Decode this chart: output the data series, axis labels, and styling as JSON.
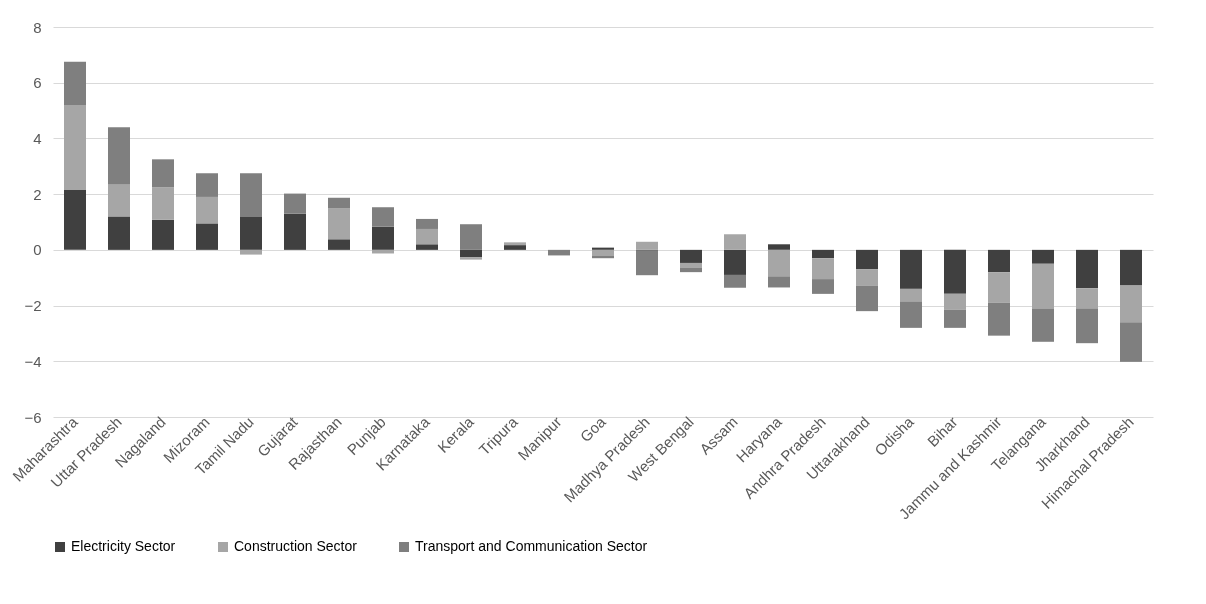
{
  "chart_data": {
    "type": "bar",
    "stacked": true,
    "categories": [
      "Maharashtra",
      "Uttar Pradesh",
      "Nagaland",
      "Mizoram",
      "Tamil Nadu",
      "Gujarat",
      "Rajasthan",
      "Punjab",
      "Karnataka",
      "Kerala",
      "Tripura",
      "Manipur",
      "Goa",
      "Madhya Pradesh",
      "West Bengal",
      "Assam",
      "Haryana",
      "Andhra Pradesh",
      "Uttarakhand",
      "Odisha",
      "Bihar",
      "Jammu and Kashmir",
      "Telangana",
      "Jharkhand",
      "Himachal Pradesh"
    ],
    "series": [
      {
        "name": "Electricity Sector",
        "color": "#404040",
        "values": [
          2.15,
          1.2,
          1.08,
          0.95,
          1.18,
          1.3,
          0.38,
          0.83,
          0.2,
          -0.27,
          0.17,
          0,
          0.08,
          -0.03,
          -0.47,
          -0.9,
          0.2,
          -0.3,
          -0.7,
          -1.4,
          -1.58,
          -0.8,
          -0.5,
          -1.38,
          -1.28
        ]
      },
      {
        "name": "Construction Sector",
        "color": "#a6a6a6",
        "values": [
          3.05,
          1.15,
          1.17,
          0.95,
          -0.17,
          0,
          1.12,
          -0.13,
          0.55,
          -0.08,
          0.1,
          0,
          -0.2,
          0.29,
          -0.18,
          0.56,
          -0.95,
          -0.75,
          -0.58,
          -0.45,
          -0.57,
          -1.1,
          -1.6,
          -0.72,
          -1.32
        ]
      },
      {
        "name": "Transport and Communication Sector",
        "color": "#7f7f7f",
        "values": [
          1.55,
          2.05,
          1.0,
          0.85,
          1.57,
          0.72,
          0.37,
          0.7,
          0.36,
          0.92,
          0,
          -0.2,
          -0.1,
          -0.88,
          -0.15,
          -0.46,
          -0.4,
          -0.53,
          -0.92,
          -0.95,
          -0.65,
          -1.18,
          -1.2,
          -1.25,
          -1.42
        ]
      }
    ],
    "ylim": [
      -6,
      8
    ],
    "yticks": [
      -6,
      -4,
      -2,
      0,
      2,
      4,
      6,
      8
    ],
    "grid": "y",
    "legend": "bottom"
  }
}
